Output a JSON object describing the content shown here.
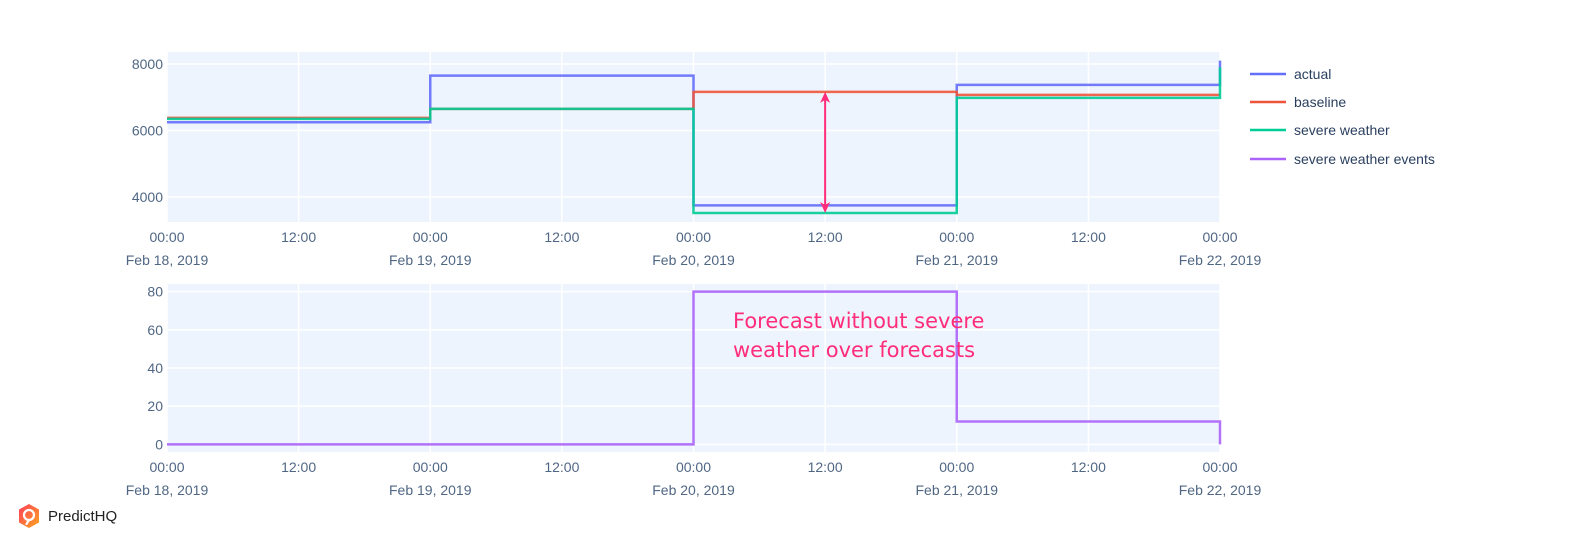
{
  "brand": {
    "name": "PredictHQ",
    "logo_icon": "predicthq-logo-icon",
    "colors": [
      "#ff4d4d",
      "#ffb020"
    ]
  },
  "colors": {
    "plot_bg": "#eef4fd",
    "grid": "#ffffff",
    "actual": "#636efa",
    "baseline": "#ef553b",
    "severe_weather": "#00cc96",
    "severe_weather_events": "#ab63fa",
    "annotation": "#ff2d7a"
  },
  "chart_data": [
    {
      "type": "line",
      "line_shape": "step",
      "title": "",
      "xlabel": "",
      "ylabel": "",
      "x": [
        "2019-02-18 00:00",
        "2019-02-19 00:00",
        "2019-02-20 00:00",
        "2019-02-21 00:00",
        "2019-02-22 00:00"
      ],
      "x_tick_labels": [
        {
          "time": "00:00",
          "date": "Feb 18, 2019"
        },
        {
          "time": "12:00",
          "date": ""
        },
        {
          "time": "00:00",
          "date": "Feb 19, 2019"
        },
        {
          "time": "12:00",
          "date": ""
        },
        {
          "time": "00:00",
          "date": "Feb 20, 2019"
        },
        {
          "time": "12:00",
          "date": ""
        },
        {
          "time": "00:00",
          "date": "Feb 21, 2019"
        },
        {
          "time": "12:00",
          "date": ""
        },
        {
          "time": "00:00",
          "date": "Feb 22, 2019"
        }
      ],
      "y_tick_labels": [
        "4000",
        "6000",
        "8000"
      ],
      "ylim": [
        3250,
        8360
      ],
      "series": [
        {
          "name": "actual",
          "values": [
            6250,
            7650,
            3750,
            7370,
            8100
          ]
        },
        {
          "name": "baseline",
          "values": [
            6380,
            6650,
            7160,
            7070,
            7070
          ]
        },
        {
          "name": "severe weather",
          "values": [
            6350,
            6650,
            3520,
            6980,
            7900
          ]
        }
      ],
      "annotations": [
        {
          "type": "double-arrow",
          "x": "2019-02-20 12:00",
          "from": 7160,
          "to": 3520,
          "color": "#ff2d7a"
        }
      ],
      "grid": true,
      "legend_position": "right"
    },
    {
      "type": "line",
      "line_shape": "step",
      "title": "",
      "xlabel": "",
      "ylabel": "",
      "x": [
        "2019-02-18 00:00",
        "2019-02-19 00:00",
        "2019-02-20 00:00",
        "2019-02-21 00:00",
        "2019-02-22 00:00"
      ],
      "x_tick_labels": [
        {
          "time": "00:00",
          "date": "Feb 18, 2019"
        },
        {
          "time": "12:00",
          "date": ""
        },
        {
          "time": "00:00",
          "date": "Feb 19, 2019"
        },
        {
          "time": "12:00",
          "date": ""
        },
        {
          "time": "00:00",
          "date": "Feb 20, 2019"
        },
        {
          "time": "12:00",
          "date": ""
        },
        {
          "time": "00:00",
          "date": "Feb 21, 2019"
        },
        {
          "time": "12:00",
          "date": ""
        },
        {
          "time": "00:00",
          "date": "Feb 22, 2019"
        }
      ],
      "y_tick_labels": [
        "0",
        "20",
        "40",
        "60",
        "80"
      ],
      "ylim": [
        -4,
        84
      ],
      "series": [
        {
          "name": "severe weather events",
          "values": [
            0,
            0,
            80,
            12,
            0
          ]
        }
      ],
      "annotations": [
        {
          "type": "text",
          "lines": [
            "Forecast without severe",
            "weather over forecasts"
          ],
          "color": "#ff2d7a"
        }
      ],
      "grid": true
    }
  ],
  "legend": {
    "items": [
      {
        "label": "actual",
        "color": "#636efa"
      },
      {
        "label": "baseline",
        "color": "#ef553b"
      },
      {
        "label": "severe weather",
        "color": "#00cc96"
      },
      {
        "label": "severe weather events",
        "color": "#ab63fa"
      }
    ]
  },
  "annotation_text": {
    "line1": "Forecast without severe",
    "line2": "weather over forecasts"
  }
}
